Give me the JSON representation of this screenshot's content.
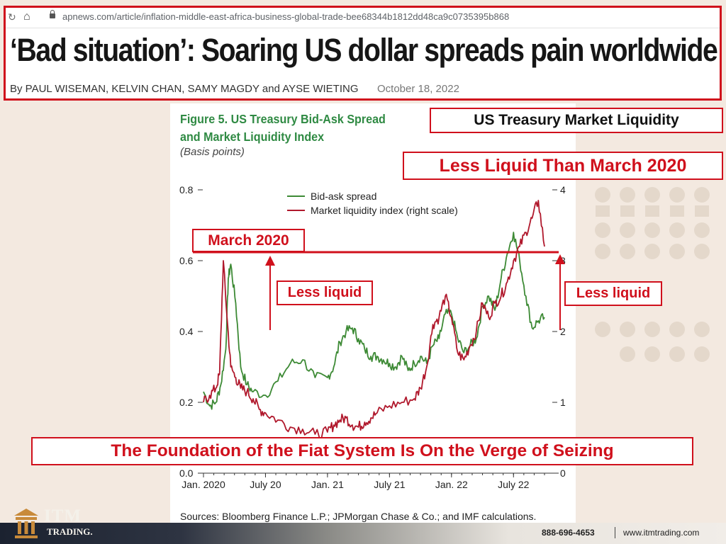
{
  "browser": {
    "url": "apnews.com/article/inflation-middle-east-africa-business-global-trade-bee68344b1812dd48ca9c0735395b868"
  },
  "article": {
    "headline": "‘Bad situation’: Soaring US dollar spreads pain worldwide",
    "byline": "By PAUL WISEMAN, KELVIN CHAN, SAMY MAGDY and AYSE WIETING",
    "date": "October 18, 2022"
  },
  "figure": {
    "title": "Figure 5. US Treasury Bid-Ask Spread and Market Liquidity Index",
    "subtitle": "(Basis points)",
    "sources": "Sources: Bloomberg Finance L.P.; JPMorgan Chase & Co.; and IMF calculations."
  },
  "callouts": {
    "liquidity_title": "US Treasury Market Liquidity",
    "less_than_2020": "Less Liquid Than March 2020",
    "march_2020": "March 2020",
    "less_liquid_left": "Less liquid",
    "less_liquid_right": "Less liquid",
    "foundation": "The Foundation of the Fiat System Is On the Verge of Seizing"
  },
  "footer": {
    "brand": "ITM",
    "brand_sub": "TRADING.",
    "phone": "888-696-4653",
    "website": "www.itmtrading.com"
  },
  "colors": {
    "accent_red": "#d0101c",
    "bid_ask_green": "#3d8a35",
    "liquidity_red": "#b0182c",
    "title_green": "#2f8a43"
  },
  "chart_data": {
    "type": "line",
    "x_ticks": [
      "Jan. 2020",
      "July 20",
      "Jan. 21",
      "July 21",
      "Jan. 22",
      "July 22"
    ],
    "y_left": {
      "ticks": [
        "0.0",
        "0.2",
        "0.4",
        "0.6",
        "0.8"
      ],
      "range": [
        0,
        0.8
      ]
    },
    "y_right": {
      "ticks": [
        "0",
        "1",
        "2",
        "3",
        "4"
      ],
      "range": [
        0,
        4
      ]
    },
    "series": [
      {
        "name": "Bid-ask spread",
        "axis": "left",
        "color": "#3d8a35",
        "x": [
          2020.0,
          2020.05,
          2020.1,
          2020.14,
          2020.18,
          2020.2,
          2020.22,
          2020.26,
          2020.3,
          2020.35,
          2020.4,
          2020.5,
          2020.6,
          2020.7,
          2020.8,
          2020.9,
          2021.0,
          2021.05,
          2021.1,
          2021.15,
          2021.2,
          2021.25,
          2021.3,
          2021.35,
          2021.4,
          2021.45,
          2021.5,
          2021.55,
          2021.6,
          2021.65,
          2021.7,
          2021.75,
          2021.8,
          2021.85,
          2021.9,
          2021.95,
          2022.0,
          2022.05,
          2022.1,
          2022.15,
          2022.2,
          2022.25,
          2022.3,
          2022.35,
          2022.4,
          2022.45,
          2022.5,
          2022.55,
          2022.6,
          2022.65,
          2022.7,
          2022.75
        ],
        "y": [
          0.23,
          0.19,
          0.2,
          0.25,
          0.35,
          0.55,
          0.59,
          0.48,
          0.3,
          0.25,
          0.23,
          0.22,
          0.26,
          0.31,
          0.32,
          0.27,
          0.27,
          0.3,
          0.37,
          0.4,
          0.41,
          0.38,
          0.35,
          0.33,
          0.33,
          0.32,
          0.31,
          0.3,
          0.33,
          0.29,
          0.31,
          0.33,
          0.31,
          0.36,
          0.38,
          0.45,
          0.45,
          0.38,
          0.34,
          0.36,
          0.38,
          0.47,
          0.5,
          0.46,
          0.55,
          0.62,
          0.68,
          0.6,
          0.5,
          0.41,
          0.43,
          0.44
        ]
      },
      {
        "name": "Market liquidity index (right scale)",
        "axis": "right",
        "color": "#b0182c",
        "x": [
          2020.0,
          2020.05,
          2020.1,
          2020.13,
          2020.16,
          2020.19,
          2020.22,
          2020.26,
          2020.3,
          2020.35,
          2020.4,
          2020.45,
          2020.5,
          2020.6,
          2020.7,
          2020.8,
          2020.9,
          2021.0,
          2021.05,
          2021.1,
          2021.15,
          2021.2,
          2021.25,
          2021.3,
          2021.35,
          2021.4,
          2021.5,
          2021.6,
          2021.7,
          2021.75,
          2021.8,
          2021.85,
          2021.9,
          2021.95,
          2022.0,
          2022.05,
          2022.1,
          2022.15,
          2022.2,
          2022.25,
          2022.3,
          2022.35,
          2022.4,
          2022.45,
          2022.5,
          2022.55,
          2022.6,
          2022.65,
          2022.7,
          2022.75
        ],
        "y": [
          1.0,
          1.1,
          1.2,
          1.4,
          3.0,
          2.2,
          1.5,
          1.35,
          1.2,
          1.15,
          1.05,
          0.9,
          0.85,
          0.75,
          0.65,
          0.62,
          0.55,
          0.58,
          0.68,
          0.75,
          0.78,
          0.68,
          0.65,
          0.72,
          0.78,
          0.85,
          0.95,
          1.0,
          1.05,
          1.2,
          1.5,
          2.1,
          2.2,
          2.5,
          2.2,
          1.7,
          1.6,
          1.8,
          2.0,
          2.4,
          2.2,
          2.4,
          2.5,
          2.7,
          3.0,
          3.2,
          3.4,
          3.6,
          3.85,
          3.2
        ]
      }
    ]
  }
}
